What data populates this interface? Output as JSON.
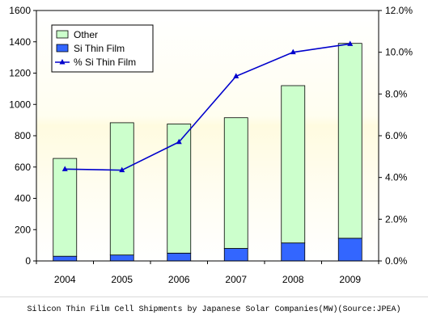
{
  "chart_data": {
    "type": "bar",
    "stacked": true,
    "categories": [
      "2004",
      "2005",
      "2006",
      "2007",
      "2008",
      "2009"
    ],
    "series": [
      {
        "name": "Other",
        "kind": "bar",
        "axis": "left",
        "color": "#ccffcc",
        "values": [
          625,
          845,
          825,
          835,
          1005,
          1245
        ]
      },
      {
        "name": "Si Thin Film",
        "kind": "bar",
        "axis": "left",
        "color": "#3366ff",
        "values": [
          30,
          38,
          50,
          80,
          115,
          145
        ]
      },
      {
        "name": "% Si Thin Film",
        "kind": "line",
        "axis": "right",
        "color": "#0000cc",
        "values": [
          4.4,
          4.35,
          5.7,
          8.85,
          10.0,
          10.4
        ]
      }
    ],
    "y_left": {
      "min": 0,
      "max": 1600,
      "step": 200,
      "ticks": [
        "0",
        "200",
        "400",
        "600",
        "800",
        "1000",
        "1200",
        "1400",
        "1600"
      ]
    },
    "y_right": {
      "min": 0,
      "max": 12,
      "step": 2,
      "ticks": [
        "0.0%",
        "2.0%",
        "4.0%",
        "6.0%",
        "8.0%",
        "10.0%",
        "12.0%"
      ]
    },
    "legend_placement": "top-left",
    "grid": false,
    "background_gradient": [
      "#fffde6",
      "#ffffff"
    ]
  },
  "caption": "Silicon Thin Film Cell Shipments by Japanese Solar Companies(MW)(Source:JPEA)"
}
